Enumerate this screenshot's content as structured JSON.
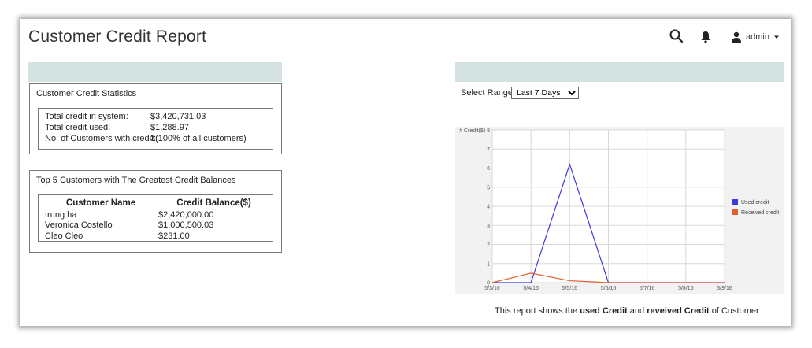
{
  "header": {
    "title": "Customer Credit Report",
    "admin_label": "admin"
  },
  "icons": {
    "search": "search-icon",
    "bell": "bell-icon",
    "user": "user-icon",
    "caret": "caret-down-icon"
  },
  "statistics": {
    "title": "Customer Credit Statistics",
    "rows": [
      {
        "label": "Total credit in system:",
        "value": "$3,420,731.03"
      },
      {
        "label": "Total credit used:",
        "value": "$1,288.97"
      },
      {
        "label": "No. of Customers with credit:",
        "value": "3(100% of all customers)"
      }
    ]
  },
  "top_customers": {
    "title": "Top 5 Customers with The Greatest Credit Balances",
    "headers": [
      "Customer Name",
      "Credit Balance($)"
    ],
    "rows": [
      [
        "trung ha",
        "$2,420,000.00"
      ],
      [
        "Veronica Costello",
        "$1,000,500.03"
      ],
      [
        "Cleo Cleo",
        "$231.00"
      ]
    ]
  },
  "range": {
    "label": "Select Range:",
    "selected": "Last 7 Days"
  },
  "caption": {
    "prefix": "This report shows the ",
    "used": "used Credit",
    "middle": " and ",
    "received": "reveived Credit",
    "suffix": " of Customer"
  },
  "colors": {
    "used": "#3b3bdc",
    "received": "#e06030",
    "header_bar": "#d4e2e2"
  },
  "chart_data": {
    "type": "line",
    "ylabel": "# Credit($)",
    "x": [
      "5/3/16",
      "5/4/16",
      "5/5/16",
      "5/6/16",
      "5/7/16",
      "5/8/16",
      "5/9/16"
    ],
    "ylim": [
      0,
      8
    ],
    "yticks": [
      0,
      1,
      2,
      3,
      4,
      5,
      6,
      7,
      8
    ],
    "grid": true,
    "legend_position": "right",
    "series": [
      {
        "name": "Used credit",
        "color": "#3b3bdc",
        "values": [
          0,
          0,
          6.2,
          0,
          0,
          0,
          0
        ]
      },
      {
        "name": "Received credit",
        "color": "#e06030",
        "values": [
          0,
          0.5,
          0.1,
          0,
          0,
          0,
          0
        ]
      }
    ]
  }
}
